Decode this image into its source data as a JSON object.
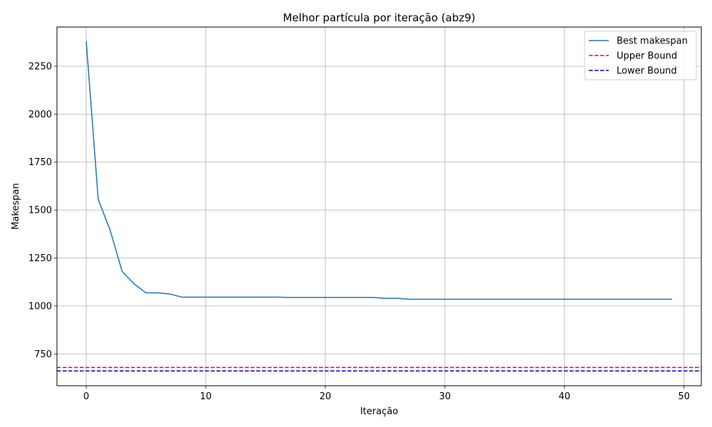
{
  "chart_data": {
    "type": "line",
    "title": "Melhor partícula por iteração (abz9)",
    "xlabel": "Iteração",
    "ylabel": "Makespan",
    "xlim": [
      -2.45,
      51.45
    ],
    "ylim": [
      584,
      2454
    ],
    "xticks": [
      0,
      10,
      20,
      30,
      40,
      50
    ],
    "yticks": [
      750,
      1000,
      1250,
      1500,
      1750,
      2000,
      2250
    ],
    "grid": true,
    "legend_position": "top-right",
    "series": [
      {
        "name": "Best makespan",
        "color": "#1f77b4",
        "style": "solid",
        "x": [
          0,
          1,
          2,
          3,
          4,
          5,
          6,
          7,
          8,
          9,
          10,
          11,
          12,
          13,
          14,
          15,
          16,
          17,
          18,
          19,
          20,
          21,
          22,
          23,
          24,
          25,
          26,
          27,
          28,
          29,
          30,
          31,
          32,
          33,
          34,
          35,
          36,
          37,
          38,
          39,
          40,
          41,
          42,
          43,
          44,
          45,
          46,
          47,
          48,
          49
        ],
        "y": [
          2380,
          1555,
          1395,
          1180,
          1115,
          1068,
          1068,
          1062,
          1046,
          1046,
          1046,
          1046,
          1046,
          1046,
          1046,
          1046,
          1046,
          1044,
          1044,
          1044,
          1044,
          1044,
          1044,
          1044,
          1044,
          1040,
          1040,
          1035,
          1035,
          1035,
          1035,
          1035,
          1035,
          1035,
          1035,
          1035,
          1035,
          1035,
          1035,
          1035,
          1035,
          1035,
          1035,
          1035,
          1035,
          1035,
          1035,
          1035,
          1035,
          1035
        ]
      },
      {
        "name": "Upper Bound",
        "color": "#ff0000",
        "style": "dashed",
        "hline": 679
      },
      {
        "name": "Lower Bound",
        "color": "#0000cc",
        "style": "dashed",
        "hline": 661
      }
    ]
  }
}
